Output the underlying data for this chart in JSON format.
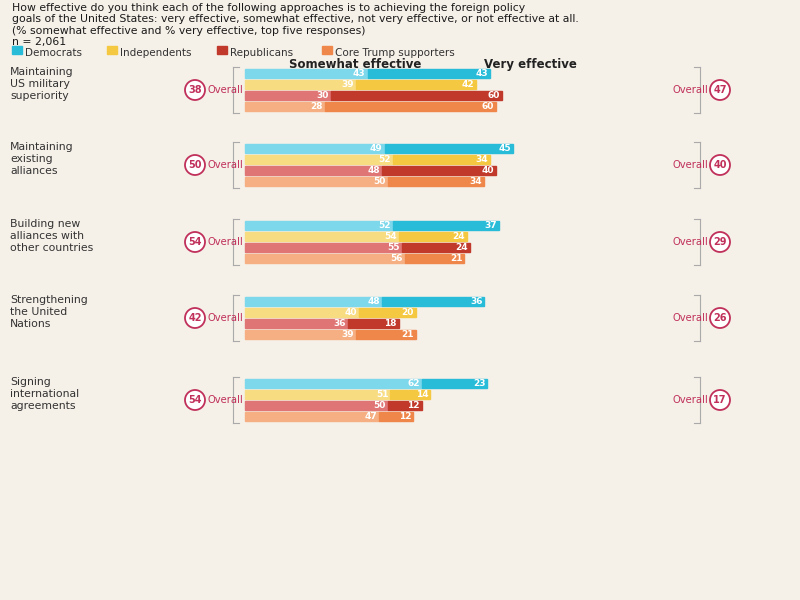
{
  "title_lines": [
    "How effective do you think each of the following approaches is to achieving the foreign policy",
    "goals of the United States: very effective, somewhat effective, not very effective, or not effective at all.",
    "(% somewhat effective and % very effective, top five responses)",
    "n = 2,061"
  ],
  "legend": [
    "Democrats",
    "Independents",
    "Republicans",
    "Core Trump supporters"
  ],
  "legend_colors": [
    "#29bcd8",
    "#f5c842",
    "#c0392b",
    "#f0874a"
  ],
  "col_headers": [
    "Somewhat effective",
    "Very effective"
  ],
  "categories": [
    "Maintaining\nUS military\nsuperiority",
    "Maintaining\nexisting\nalliances",
    "Building new\nalliances with\nother countries",
    "Strengthening\nthe United\nNations",
    "Signing\ninternational\nagreements"
  ],
  "overall_left": [
    38,
    50,
    54,
    42,
    54
  ],
  "overall_right": [
    47,
    40,
    29,
    26,
    17
  ],
  "somewhat_effective": {
    "Democrats": [
      43,
      49,
      52,
      48,
      62
    ],
    "Independents": [
      39,
      52,
      54,
      40,
      51
    ],
    "Republicans": [
      30,
      48,
      55,
      36,
      50
    ],
    "Core Trump supporters": [
      28,
      50,
      56,
      39,
      47
    ]
  },
  "very_effective": {
    "Democrats": [
      43,
      45,
      37,
      36,
      23
    ],
    "Independents": [
      42,
      34,
      24,
      20,
      14
    ],
    "Republicans": [
      60,
      40,
      24,
      18,
      12
    ],
    "Core Trump supporters": [
      60,
      34,
      21,
      21,
      12
    ]
  },
  "colors": {
    "Democrats": "#29bcd8",
    "Independents": "#f5c842",
    "Republicans": "#c0392b",
    "Core Trump supporters": "#f0874a"
  },
  "colors_light": {
    "Democrats": "#7dd8eb",
    "Independents": "#f8dc7a",
    "Republicans": "#e07070",
    "Core Trump supporters": "#f5ad7a"
  },
  "bg_color": "#f5f0e8",
  "overall_color": "#c0305a"
}
